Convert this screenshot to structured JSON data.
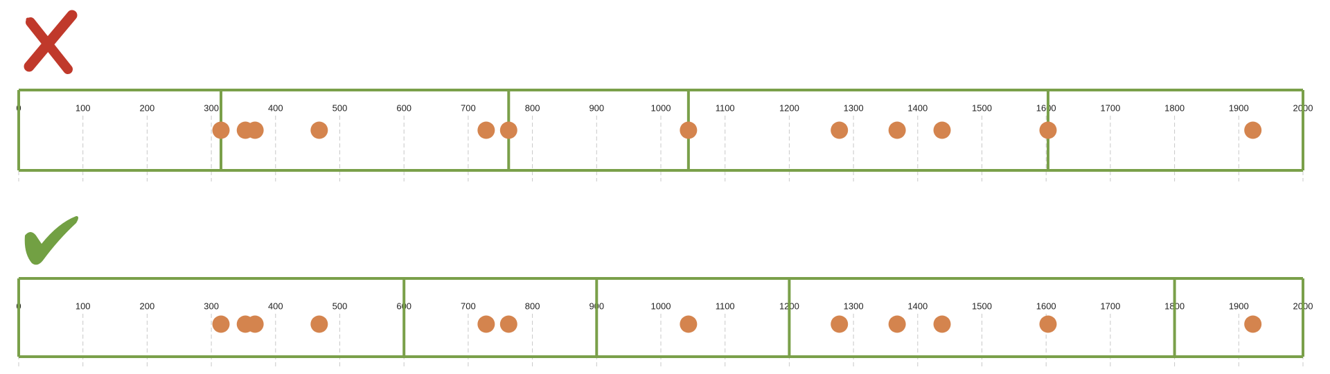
{
  "chart_data": [
    {
      "type": "strip",
      "x": [
        315,
        353,
        368,
        468,
        728,
        763,
        1043,
        1278,
        1368,
        1438,
        1603,
        1922
      ],
      "color": "#d4844e",
      "bin_edges": [
        0,
        315,
        763,
        1043,
        1603,
        2000
      ],
      "bin_color": "#7aa04a",
      "xlim": [
        0,
        2000
      ],
      "xticks": [
        0,
        100,
        200,
        300,
        400,
        500,
        600,
        700,
        800,
        900,
        1000,
        1100,
        1200,
        1300,
        1400,
        1500,
        1600,
        1700,
        1800,
        1900,
        2000
      ],
      "grid": true
    },
    {
      "type": "strip",
      "x": [
        315,
        353,
        368,
        468,
        728,
        763,
        1043,
        1278,
        1368,
        1438,
        1603,
        1922
      ],
      "color": "#d4844e",
      "bin_edges": [
        0,
        600,
        900,
        1200,
        1800,
        2000
      ],
      "bin_color": "#7aa04a",
      "xlim": [
        0,
        2000
      ],
      "xticks": [
        0,
        100,
        200,
        300,
        400,
        500,
        600,
        700,
        800,
        900,
        1000,
        1100,
        1200,
        1300,
        1400,
        1500,
        1600,
        1700,
        1800,
        1900,
        2000
      ],
      "grid": true
    }
  ]
}
